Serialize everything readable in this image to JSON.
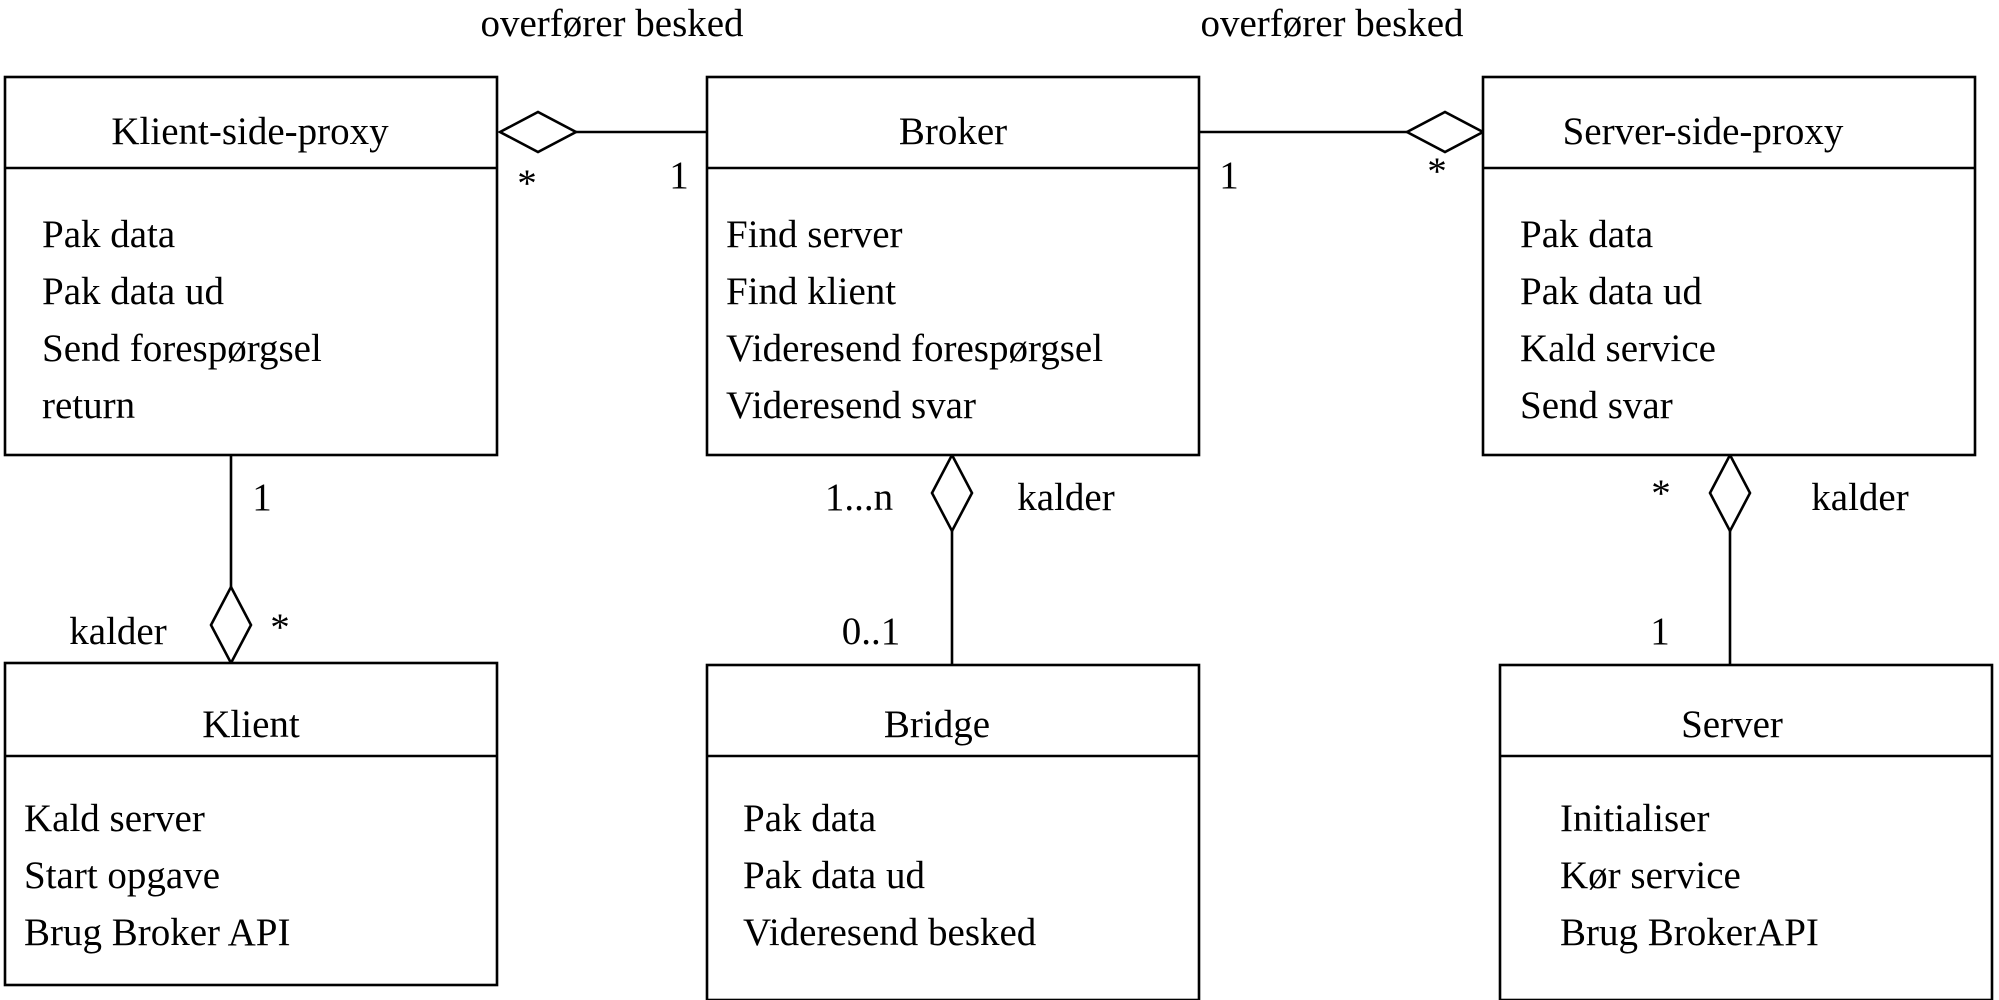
{
  "classes": {
    "klient_side_proxy": {
      "name": "Klient-side-proxy",
      "ops": [
        "Pak data",
        "Pak data ud",
        "Send forespørgsel",
        "return"
      ]
    },
    "broker": {
      "name": "Broker",
      "ops": [
        "Find server",
        "Find klient",
        "Videresend forespørgsel",
        "Videresend svar"
      ]
    },
    "server_side_proxy": {
      "name": "Server-side-proxy",
      "ops": [
        "Pak data",
        "Pak data ud",
        "Kald service",
        "Send svar"
      ]
    },
    "klient": {
      "name": "Klient",
      "ops": [
        "Kald server",
        "Start opgave",
        "Brug Broker API"
      ]
    },
    "bridge": {
      "name": "Bridge",
      "ops": [
        "Pak data",
        "Pak data ud",
        "Videresend besked"
      ]
    },
    "server": {
      "name": "Server",
      "ops": [
        "Initialiser",
        "Kør service",
        "Brug BrokerAPI"
      ]
    }
  },
  "associations": {
    "proxy_broker_left": {
      "label": "overfører besked",
      "mult_proxy": "*",
      "mult_broker": "1"
    },
    "broker_proxy_right": {
      "label": "overfører besked",
      "mult_broker": "1",
      "mult_proxy": "*"
    },
    "klient_proxy": {
      "label": "kalder",
      "mult_proxy": "1",
      "mult_klient": "*"
    },
    "broker_bridge": {
      "label": "kalder",
      "mult_broker": "1...n",
      "mult_bridge": "0..1"
    },
    "server_proxy": {
      "label": "kalder",
      "mult_proxy": "*",
      "mult_server": "1"
    }
  }
}
